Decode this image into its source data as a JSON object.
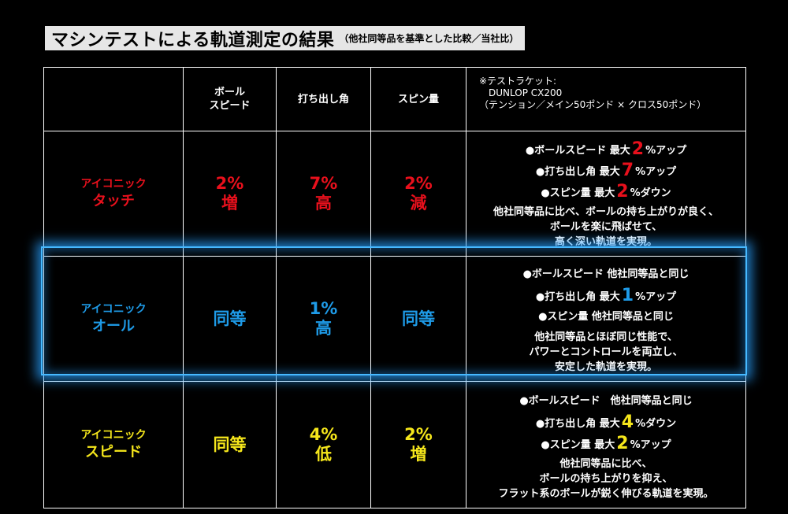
{
  "title": {
    "main": "マシンテストによる軌道測定の結果",
    "sub": "（他社同等品を基準とした比較／当社比）"
  },
  "header": {
    "col1": "",
    "col2_line1": "ボール",
    "col2_line2": "スピード",
    "col3": "打ち出し角",
    "col4": "スピン量",
    "note_line1": "※テストラケット:",
    "note_line2": "DUNLOP CX200",
    "note_line3": "（テンション／メイン50ポンド × クロス50ポンド）"
  },
  "rows": [
    {
      "name_small": "アイコニック",
      "name_large": "タッチ",
      "ball_speed": [
        "2%",
        "増"
      ],
      "launch_angle": [
        "7%",
        "高"
      ],
      "spin": [
        "2%",
        "減"
      ],
      "bullets": [
        {
          "pre": "●ボールスピード 最大",
          "num": "2",
          "post": "%アップ"
        },
        {
          "pre": "●打ち出し角 最大",
          "num": "7",
          "post": "%アップ"
        },
        {
          "pre": "●スピン量 最大",
          "num": "2",
          "post": "%ダウン"
        }
      ],
      "description": [
        "他社同等品に比べ、ボールの持ち上がりが良く、",
        "ボールを楽に飛ばせて、",
        "高く深い軌道を実現。"
      ]
    },
    {
      "name_small": "アイコニック",
      "name_large": "オール",
      "ball_speed": [
        "同等",
        ""
      ],
      "launch_angle": [
        "1%",
        "高"
      ],
      "spin": [
        "同等",
        ""
      ],
      "bullets": [
        {
          "pre": "●ボールスピード 他社同等品と同じ",
          "num": "",
          "post": ""
        },
        {
          "pre": "●打ち出し角 最大",
          "num": "1",
          "post": "%アップ"
        },
        {
          "pre": "●スピン量 他社同等品と同じ",
          "num": "",
          "post": ""
        }
      ],
      "description": [
        "他社同等品とほぼ同じ性能で、",
        "パワーとコントロールを両立し、",
        "安定した軌道を実現。"
      ]
    },
    {
      "name_small": "アイコニック",
      "name_large": "スピード",
      "ball_speed": [
        "同等",
        ""
      ],
      "launch_angle": [
        "4%",
        "低"
      ],
      "spin": [
        "2%",
        "増"
      ],
      "bullets": [
        {
          "pre": "●ボールスピード　他社同等品と同じ",
          "num": "",
          "post": ""
        },
        {
          "pre": "●打ち出し角 最大",
          "num": "4",
          "post": "%ダウン"
        },
        {
          "pre": "●スピン量 最大",
          "num": "2",
          "post": "%アップ"
        }
      ],
      "description": [
        "他社同等品に比べ、",
        "ボールの持ち上がりを抑え、",
        "フラット系のボールが鋭く伸びる軌道を実現。"
      ]
    }
  ],
  "colors": {
    "touch": "#e8101c",
    "all": "#1e9be8",
    "speed": "#f5e61b",
    "highlight_glow": "#46b9ff"
  }
}
